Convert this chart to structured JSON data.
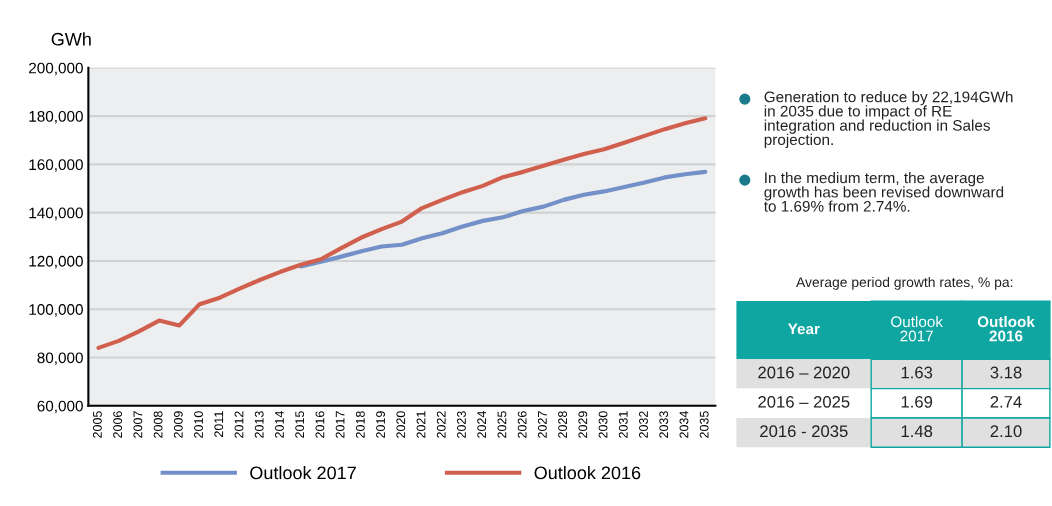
{
  "chart_data": {
    "type": "line",
    "ylabel": "GWh",
    "categories": [
      "2005",
      "2006",
      "2007",
      "2008",
      "2009",
      "2010",
      "2011",
      "2012",
      "2013",
      "2014",
      "2015",
      "2016",
      "2017",
      "2018",
      "2019",
      "2020",
      "2021",
      "2022",
      "2023",
      "2024",
      "2025",
      "2026",
      "2027",
      "2028",
      "2029",
      "2030",
      "2031",
      "2032",
      "2033",
      "2034",
      "2035"
    ],
    "series": [
      {
        "name": "Outlook 2017",
        "color": "#7391c8",
        "values": [
          null,
          null,
          null,
          null,
          null,
          null,
          null,
          null,
          null,
          null,
          117700,
          119700,
          121800,
          124000,
          126000,
          126700,
          129400,
          131500,
          134300,
          136600,
          138100,
          140700,
          142500,
          145300,
          147400,
          148800,
          150600,
          152500,
          154600,
          155900,
          156900
        ]
      },
      {
        "name": "Outlook 2016",
        "color": "#d0604d",
        "values": [
          84000,
          86900,
          90800,
          95300,
          93300,
          102100,
          104800,
          108600,
          112200,
          115500,
          118400,
          120700,
          125300,
          129700,
          133200,
          136300,
          141900,
          145300,
          148500,
          151100,
          154700,
          156900,
          159400,
          161900,
          164300,
          166300,
          169000,
          171800,
          174600,
          177000,
          179100
        ]
      }
    ],
    "ylim": [
      60000,
      200000
    ],
    "yticks": [
      {
        "value": 60000,
        "label": "60,000"
      },
      {
        "value": 80000,
        "label": "80,000"
      },
      {
        "value": 100000,
        "label": "100,000"
      },
      {
        "value": 120000,
        "label": "120,000"
      },
      {
        "value": 140000,
        "label": "140,000"
      },
      {
        "value": 160000,
        "label": "160,000"
      },
      {
        "value": 180000,
        "label": "180,000"
      },
      {
        "value": 200000,
        "label": "200,000"
      }
    ],
    "grid": "y",
    "legend": "bottom",
    "marker": "none",
    "line_style": "solid",
    "annotations": [
      "Generation to reduce by 22,194GWh\nin 2035 due to impact of RE\nintegration and reduction in Sales\nprojection.",
      "In the medium term, the average\ngrowth has been revised downward\nto 1.69% from 2.74%.",
      "Average period growth rates, % pa:",
      "Year",
      "Outlook\n2017",
      "Outlook\n2016",
      "2016 – 2020",
      "1.63",
      "3.18",
      "2016 – 2025",
      "1.69",
      "2.74",
      "2016 - 2035",
      "1.48",
      "2.10"
    ]
  }
}
